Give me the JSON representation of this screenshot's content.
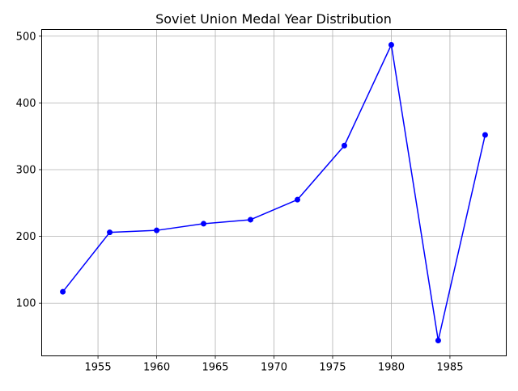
{
  "chart_data": {
    "type": "line",
    "title": "Soviet Union Medal Year Distribution",
    "xlabel": "",
    "ylabel": "",
    "x": [
      1952,
      1956,
      1960,
      1964,
      1968,
      1972,
      1976,
      1980,
      1984,
      1988
    ],
    "series": [
      {
        "values": [
          117,
          206,
          209,
          219,
          225,
          255,
          336,
          487,
          44,
          352
        ]
      }
    ],
    "xticks": [
      1955,
      1960,
      1965,
      1970,
      1975,
      1980,
      1985
    ],
    "yticks": [
      100,
      200,
      300,
      400,
      500
    ],
    "xlim": [
      1950.2,
      1989.8
    ],
    "ylim": [
      21,
      510
    ],
    "grid": true,
    "line_color": "#0000ff",
    "marker": "circle"
  }
}
